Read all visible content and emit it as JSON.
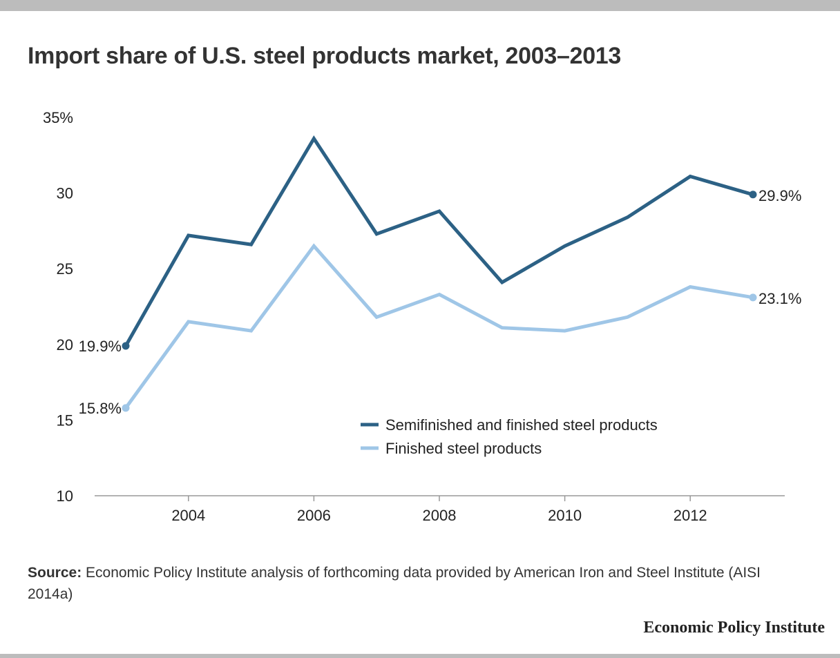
{
  "title": "Import share of U.S. steel products market, 2003–2013",
  "source": {
    "label": "Source:",
    "text": " Economic Policy Institute analysis of forthcoming data provided by American Iron and Steel Institute (AISI 2014a)"
  },
  "brand": "Economic Policy Institute",
  "colors": {
    "semifinished": "#2c6185",
    "finished": "#9fc6e7",
    "axis": "#999999"
  },
  "chart_data": {
    "type": "line",
    "title": "Import share of U.S. steel products market, 2003–2013",
    "xlabel": "",
    "ylabel": "",
    "x": [
      2003,
      2004,
      2005,
      2006,
      2007,
      2008,
      2009,
      2010,
      2011,
      2012,
      2013
    ],
    "xlim": [
      2002.5,
      2013.5
    ],
    "ylim": [
      10,
      35
    ],
    "xticks": [
      2004,
      2006,
      2008,
      2010,
      2012
    ],
    "xtick_labels": [
      "2004",
      "2006",
      "2008",
      "2010",
      "2012"
    ],
    "yticks": [
      10,
      15,
      20,
      25,
      30,
      35
    ],
    "ytick_labels": [
      "10",
      "15",
      "20",
      "25",
      "30",
      "35%"
    ],
    "grid": false,
    "legend_position": "bottom-right",
    "series": [
      {
        "name": "Semifinished and finished steel products",
        "values": [
          19.9,
          27.2,
          26.6,
          33.6,
          27.3,
          28.8,
          24.1,
          26.5,
          28.4,
          31.1,
          29.9
        ],
        "start_label": "19.9%",
        "end_label": "29.9%"
      },
      {
        "name": "Finished steel products",
        "values": [
          15.8,
          21.5,
          20.9,
          26.5,
          21.8,
          23.3,
          21.1,
          20.9,
          21.8,
          23.8,
          23.1
        ],
        "start_label": "15.8%",
        "end_label": "23.1%"
      }
    ]
  }
}
